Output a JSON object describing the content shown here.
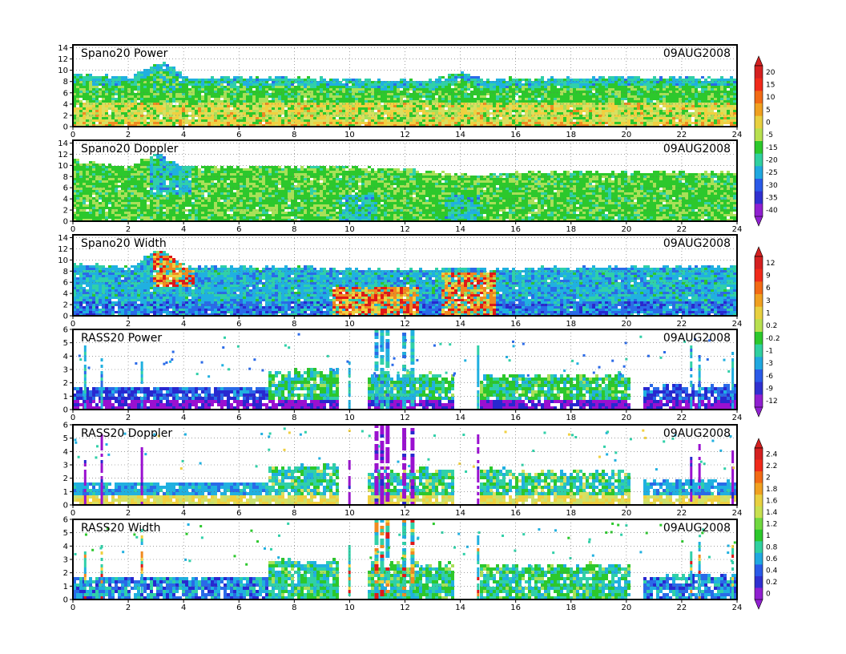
{
  "figure": {
    "date_label": "09AUG2008",
    "x_ticks": [
      "0",
      "2",
      "4",
      "6",
      "8",
      "10",
      "12",
      "14",
      "16",
      "18",
      "20",
      "22",
      "24"
    ]
  },
  "panels": [
    {
      "title": "Spano20  Power",
      "y_ticks": [
        "0",
        "2",
        "4",
        "6",
        "8",
        "10",
        "12",
        "14"
      ],
      "colorbar_group": 0
    },
    {
      "title": "Spano20  Doppler",
      "y_ticks": [
        "0",
        "2",
        "4",
        "6",
        "8",
        "10",
        "12",
        "14"
      ],
      "colorbar_group": 0
    },
    {
      "title": "Spano20  Width",
      "y_ticks": [
        "0",
        "2",
        "4",
        "6",
        "8",
        "10",
        "12",
        "14"
      ],
      "colorbar_group": 1
    },
    {
      "title": "RASS20  Power",
      "y_ticks": [
        "0",
        "1",
        "2",
        "3",
        "4",
        "5",
        "6"
      ],
      "colorbar_group": 1
    },
    {
      "title": "RASS20  Doppler",
      "y_ticks": [
        "0",
        "1",
        "2",
        "3",
        "4",
        "5",
        "6"
      ],
      "colorbar_group": 2
    },
    {
      "title": "RASS20  Width",
      "y_ticks": [
        "0",
        "1",
        "2",
        "3",
        "4",
        "5",
        "6"
      ],
      "colorbar_group": 2
    }
  ],
  "colorbars": [
    {
      "labels": [
        "20",
        "15",
        "10",
        "5",
        "0",
        "-5",
        "-15",
        "-20",
        "-25",
        "-30",
        "-35",
        "-40"
      ],
      "colors": [
        "#d42020",
        "#f02a1a",
        "#f26a14",
        "#f0a020",
        "#e8d040",
        "#b8e050",
        "#2cc82c",
        "#30d0a0",
        "#20a8e0",
        "#2a5ae8",
        "#3030d0",
        "#9020d0"
      ]
    },
    {
      "labels": [
        "12",
        "9",
        "6",
        "3",
        "1",
        "0.2",
        "-0.2",
        "-1",
        "-3",
        "-6",
        "-9",
        "-12"
      ],
      "colors": [
        "#d42020",
        "#f02a1a",
        "#f26a14",
        "#f0a020",
        "#e8d040",
        "#b8e050",
        "#2cc82c",
        "#30d0a0",
        "#20a8e0",
        "#2a5ae8",
        "#3030d0",
        "#9020d0"
      ]
    },
    {
      "labels": [
        "2.4",
        "2.2",
        "2",
        "1.8",
        "1.6",
        "1.4",
        "1.2",
        "1",
        "0.8",
        "0.6",
        "0.4",
        "0.2",
        "0"
      ],
      "colors": [
        "#d42020",
        "#f02a1a",
        "#f26a14",
        "#f0a020",
        "#e8d040",
        "#c8e050",
        "#70d840",
        "#2cc82c",
        "#30d0a0",
        "#20a8e0",
        "#2a5ae8",
        "#3030d0",
        "#9020d0"
      ]
    }
  ],
  "chart_data": [
    {
      "type": "heatmap",
      "title": "Spano20  Power",
      "annotation": "09AUG2008",
      "xlim": [
        0,
        24
      ],
      "ylim": [
        0,
        14.5
      ],
      "grid": true,
      "profile": {
        "hours": [
          0,
          2,
          3,
          3.5,
          4,
          6,
          8,
          10,
          12,
          13,
          14,
          15,
          16,
          18,
          20,
          22,
          24
        ],
        "top_km": [
          9.5,
          9,
          11.5,
          11,
          9,
          9,
          9,
          8.5,
          8.5,
          8.5,
          10,
          8.5,
          8.8,
          8.8,
          9,
          9,
          9
        ]
      }
    },
    {
      "type": "heatmap",
      "title": "Spano20  Doppler",
      "annotation": "09AUG2008",
      "xlim": [
        0,
        24
      ],
      "ylim": [
        0,
        14.5
      ],
      "grid": true,
      "profile": {
        "hours": [
          0,
          2,
          3,
          3.5,
          4,
          6,
          8,
          10,
          12,
          13,
          14,
          15,
          16,
          18,
          20,
          22,
          24
        ],
        "top_km": [
          11,
          10,
          12.5,
          11,
          10,
          10,
          10,
          10,
          9.5,
          9,
          8.5,
          8.5,
          9,
          9,
          9,
          9,
          9
        ]
      }
    },
    {
      "type": "heatmap",
      "title": "Spano20  Width",
      "annotation": "09AUG2008",
      "xlim": [
        0,
        24
      ],
      "ylim": [
        0,
        14.5
      ],
      "grid": true,
      "profile": {
        "hours": [
          0,
          2,
          3,
          3.5,
          4,
          6,
          8,
          10,
          12,
          13,
          14,
          15,
          16,
          18,
          20,
          22,
          24
        ],
        "top_km": [
          9.5,
          9,
          12,
          11,
          9,
          9,
          9,
          8.5,
          8.5,
          8.5,
          9,
          8.5,
          8.8,
          8.8,
          9,
          9,
          9
        ]
      }
    },
    {
      "type": "heatmap",
      "title": "RASS20  Power",
      "annotation": "09AUG2008",
      "xlim": [
        0,
        24
      ],
      "ylim": [
        0,
        6
      ],
      "grid": true
    },
    {
      "type": "heatmap",
      "title": "RASS20  Doppler",
      "annotation": "09AUG2008",
      "xlim": [
        0,
        24
      ],
      "ylim": [
        0,
        6
      ],
      "grid": true
    },
    {
      "type": "heatmap",
      "title": "RASS20  Width",
      "annotation": "09AUG2008",
      "xlim": [
        0,
        24
      ],
      "ylim": [
        0,
        6
      ],
      "grid": true
    }
  ]
}
